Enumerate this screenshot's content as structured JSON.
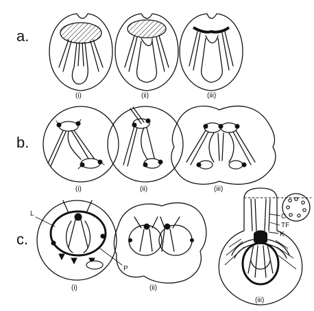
{
  "rows": [
    {
      "label": "a.",
      "panels": [
        "(i)",
        "(ii)",
        "(iii)"
      ]
    },
    {
      "label": "b.",
      "panels": [
        "(i)",
        "(ii)",
        "(iii)"
      ]
    },
    {
      "label": "c.",
      "panels": [
        "(i)",
        "(ii)",
        "(iii)"
      ]
    }
  ],
  "annotations": {
    "L": "L",
    "P": "P",
    "C": "C",
    "TF": "TF",
    "K": "K"
  }
}
